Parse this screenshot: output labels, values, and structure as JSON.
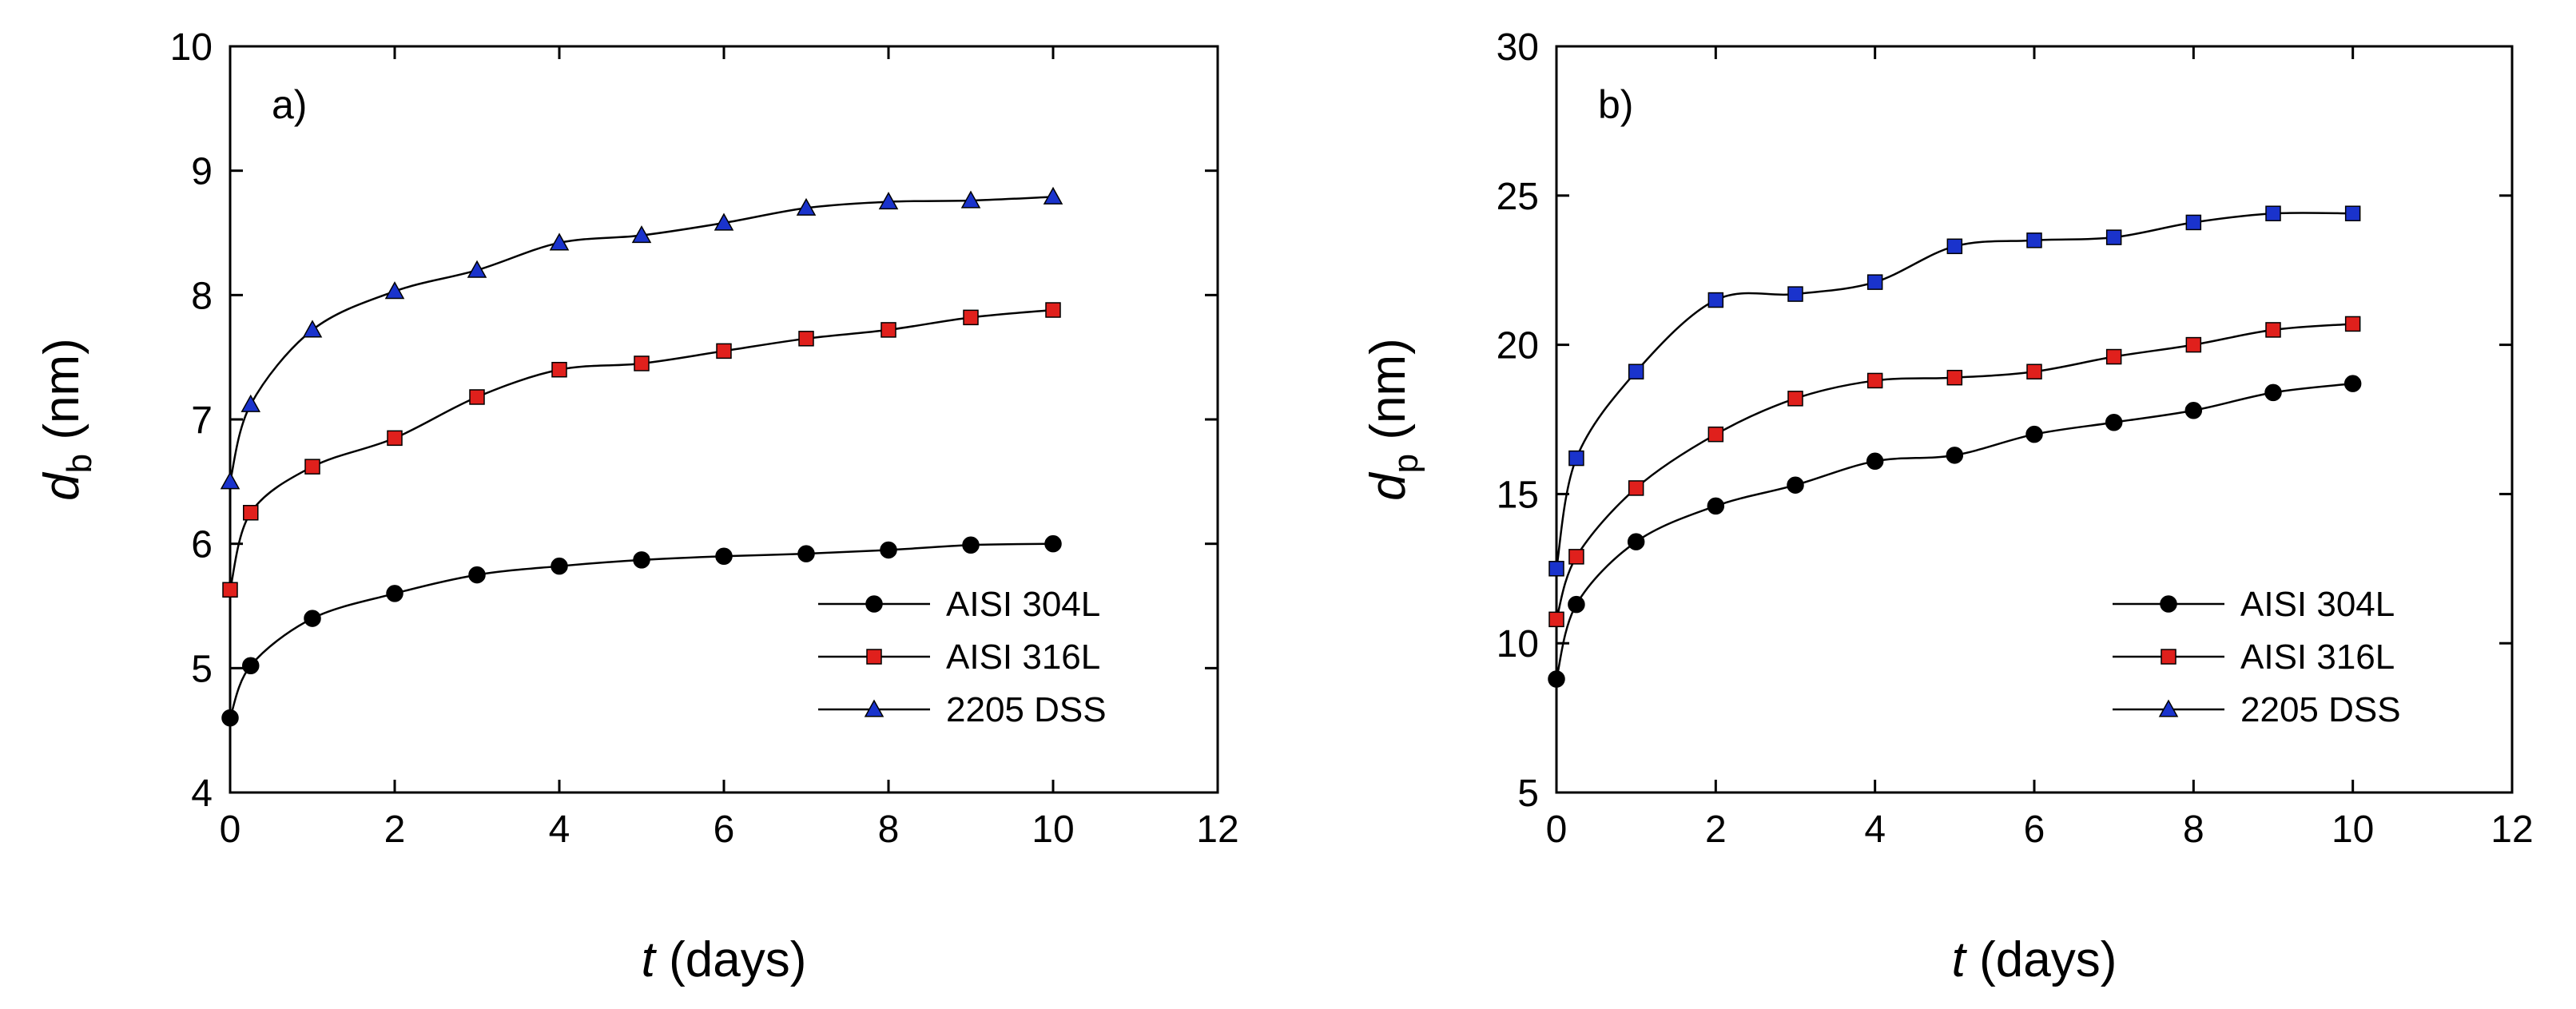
{
  "chart_data": [
    {
      "type": "line",
      "panel_label": "a)",
      "xlabel": {
        "var": "t",
        "unit": " (days)"
      },
      "ylabel": {
        "var": "d",
        "sub": "b",
        "unit": " (nm)"
      },
      "xlim": [
        0,
        12
      ],
      "ylim": [
        4,
        10
      ],
      "xticks": [
        0,
        2,
        4,
        6,
        8,
        10,
        12
      ],
      "yticks": [
        4,
        5,
        6,
        7,
        8,
        9,
        10
      ],
      "legend_position": "bottom-right",
      "x": [
        0,
        0.25,
        1,
        2,
        3,
        4,
        5,
        6,
        7,
        8,
        9,
        10
      ],
      "series": [
        {
          "name": "AISI 304L",
          "marker": "circle",
          "color": "#000000",
          "values": [
            4.6,
            5.02,
            5.4,
            5.6,
            5.75,
            5.82,
            5.87,
            5.9,
            5.92,
            5.95,
            5.99,
            6.0
          ]
        },
        {
          "name": "AISI 316L",
          "marker": "square",
          "color": "#e0201c",
          "values": [
            5.63,
            6.25,
            6.62,
            6.85,
            7.18,
            7.4,
            7.45,
            7.55,
            7.65,
            7.72,
            7.82,
            7.88
          ]
        },
        {
          "name": "2205 DSS",
          "marker": "triangle",
          "color": "#1a33cc",
          "values": [
            6.5,
            7.12,
            7.72,
            8.03,
            8.2,
            8.42,
            8.48,
            8.58,
            8.7,
            8.75,
            8.76,
            8.79
          ]
        }
      ]
    },
    {
      "type": "line",
      "panel_label": "b)",
      "xlabel": {
        "var": "t",
        "unit": " (days)"
      },
      "ylabel": {
        "var": "d",
        "sub": "p",
        "unit": " (nm)"
      },
      "xlim": [
        0,
        12
      ],
      "ylim": [
        5,
        30
      ],
      "xticks": [
        0,
        2,
        4,
        6,
        8,
        10,
        12
      ],
      "yticks": [
        5,
        10,
        15,
        20,
        25,
        30
      ],
      "legend_position": "bottom-right",
      "x": [
        0,
        0.25,
        1,
        2,
        3,
        4,
        5,
        6,
        7,
        8,
        9,
        10
      ],
      "series": [
        {
          "name": "AISI 304L",
          "marker": "circle",
          "color": "#000000",
          "values": [
            8.8,
            11.3,
            13.4,
            14.6,
            15.3,
            16.1,
            16.3,
            17.0,
            17.4,
            17.8,
            18.4,
            18.7
          ]
        },
        {
          "name": "AISI 316L",
          "marker": "square",
          "color": "#e0201c",
          "values": [
            10.8,
            12.9,
            15.2,
            17.0,
            18.2,
            18.8,
            18.9,
            19.1,
            19.6,
            20.0,
            20.5,
            20.7
          ]
        },
        {
          "name": "2205 DSS",
          "marker": "square",
          "legend_marker": "triangle",
          "color": "#1a33cc",
          "values": [
            12.5,
            16.2,
            19.1,
            21.5,
            21.7,
            22.1,
            23.3,
            23.5,
            23.6,
            24.1,
            24.4,
            24.4
          ]
        }
      ]
    }
  ]
}
